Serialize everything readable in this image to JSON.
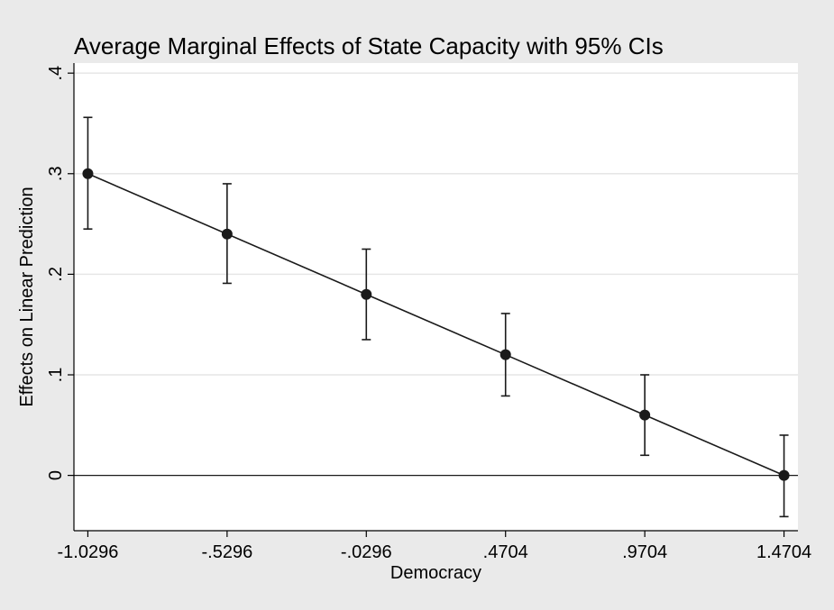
{
  "chart_data": {
    "type": "line",
    "title": "Average Marginal Effects of State Capacity with 95% CIs",
    "xlabel": "Democracy",
    "ylabel": "Effects on Linear Prediction",
    "x": [
      -1.0296,
      -0.5296,
      -0.0296,
      0.4704,
      0.9704,
      1.4704
    ],
    "x_tick_labels": [
      "-1.0296",
      "-.5296",
      "-.0296",
      ".4704",
      ".9704",
      "1.4704"
    ],
    "y_ticks": [
      0,
      0.1,
      0.2,
      0.3,
      0.4
    ],
    "y_tick_labels": [
      "0",
      ".1",
      ".2",
      ".3",
      ".4"
    ],
    "xlim": [
      -1.0796,
      1.5204
    ],
    "ylim": [
      -0.055,
      0.41
    ],
    "grid": true,
    "reference_line_y": 0,
    "series": [
      {
        "values": [
          0.3,
          0.24,
          0.18,
          0.12,
          0.06,
          0.0
        ],
        "ci_lower": [
          0.245,
          0.191,
          0.135,
          0.079,
          0.02,
          -0.041
        ],
        "ci_upper": [
          0.356,
          0.29,
          0.225,
          0.161,
          0.1,
          0.04
        ]
      }
    ],
    "colors": {
      "background": "#eaeaea",
      "plot_background": "#ffffff",
      "series": "#1a1a1a",
      "grid": "#e6e6e6",
      "reference_line": "#1a1a1a"
    }
  }
}
